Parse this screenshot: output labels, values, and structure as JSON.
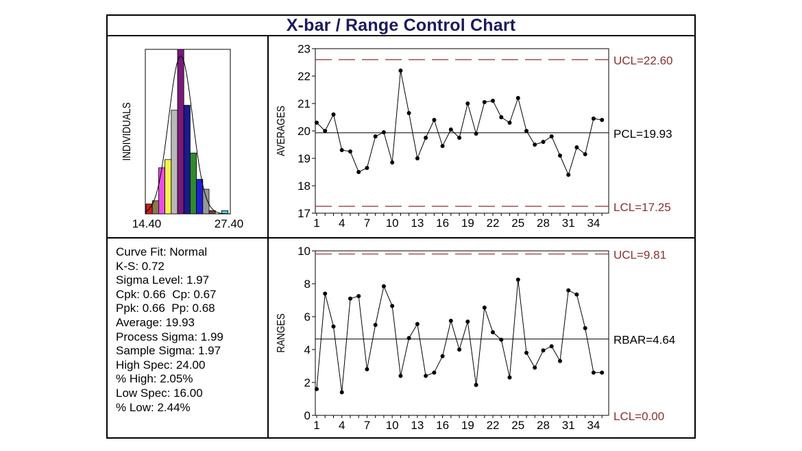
{
  "title": "X-bar / Range Control Chart",
  "colors": {
    "limit": "#8b2e2e",
    "title": "#1b1a5e",
    "center": "#000000"
  },
  "chart_data": [
    {
      "id": "histogram",
      "type": "bar",
      "title": "",
      "ylabel": "INDIVIDUALS",
      "x_tick_labels": [
        "14.40",
        "27.40"
      ],
      "xlim": [
        14.4,
        27.4
      ],
      "bins": [
        {
          "height": 0.06,
          "color": "#cc1f1f"
        },
        {
          "height": 0.08,
          "color": "#8a7c4a"
        },
        {
          "height": 0.28,
          "color": "#e84ce8"
        },
        {
          "height": 0.33,
          "color": "#f7f24a"
        },
        {
          "height": 0.63,
          "color": "#b9b9b9"
        },
        {
          "height": 1.0,
          "color": "#7a1a7a"
        },
        {
          "height": 0.66,
          "color": "#1a1a8a"
        },
        {
          "height": 0.37,
          "color": "#2e8b2e"
        },
        {
          "height": 0.21,
          "color": "#1f1fd6"
        },
        {
          "height": 0.15,
          "color": "#999999"
        },
        {
          "height": 0.02,
          "color": "#6f3f3f"
        },
        {
          "height": 0.0,
          "color": "#ffffff"
        },
        {
          "height": 0.02,
          "color": "#46c7e6"
        }
      ],
      "curve_fit": "Normal"
    },
    {
      "id": "averages",
      "type": "line",
      "ylabel": "AVERAGES",
      "ylim": [
        17,
        23
      ],
      "yticks": [
        17,
        18,
        19,
        20,
        21,
        22,
        23
      ],
      "xticks": [
        1,
        4,
        7,
        10,
        13,
        16,
        19,
        22,
        25,
        28,
        31,
        34
      ],
      "x": [
        1,
        2,
        3,
        4,
        5,
        6,
        7,
        8,
        9,
        10,
        11,
        12,
        13,
        14,
        15,
        16,
        17,
        18,
        19,
        20,
        21,
        22,
        23,
        24,
        25,
        26,
        27,
        28,
        29,
        30,
        31,
        32,
        33,
        34,
        35
      ],
      "values": [
        20.3,
        20.0,
        20.6,
        19.3,
        19.25,
        18.5,
        18.65,
        19.8,
        19.95,
        18.85,
        22.2,
        20.65,
        19.0,
        19.75,
        20.4,
        19.45,
        20.05,
        19.75,
        21.0,
        19.9,
        21.05,
        21.1,
        20.5,
        20.3,
        21.2,
        20.0,
        19.5,
        19.6,
        19.8,
        19.1,
        18.4,
        19.4,
        19.15,
        20.45,
        20.4
      ],
      "ucl": 22.6,
      "center": 19.93,
      "lcl": 17.25,
      "ucl_label": "UCL=22.60",
      "center_label": "PCL=19.93",
      "lcl_label": "LCL=17.25"
    },
    {
      "id": "ranges",
      "type": "line",
      "ylabel": "RANGES",
      "ylim": [
        0,
        10
      ],
      "yticks": [
        0,
        2,
        4,
        6,
        8,
        10
      ],
      "xticks": [
        1,
        4,
        7,
        10,
        13,
        16,
        19,
        22,
        25,
        28,
        31,
        34
      ],
      "x": [
        1,
        2,
        3,
        4,
        5,
        6,
        7,
        8,
        9,
        10,
        11,
        12,
        13,
        14,
        15,
        16,
        17,
        18,
        19,
        20,
        21,
        22,
        23,
        24,
        25,
        26,
        27,
        28,
        29,
        30,
        31,
        32,
        33,
        34,
        35
      ],
      "values": [
        1.6,
        7.4,
        5.4,
        1.4,
        7.1,
        7.25,
        2.8,
        5.5,
        7.85,
        6.65,
        2.4,
        4.7,
        5.55,
        2.4,
        2.6,
        3.6,
        5.75,
        4.0,
        5.7,
        1.85,
        6.55,
        5.05,
        4.6,
        2.3,
        8.25,
        3.8,
        2.9,
        3.95,
        4.2,
        3.3,
        7.6,
        7.35,
        5.3,
        2.6,
        2.6
      ],
      "ucl": 9.81,
      "center": 4.64,
      "lcl": 0.0,
      "ucl_label": "UCL=9.81",
      "center_label": "RBAR=4.64",
      "lcl_label": "LCL=0.00"
    }
  ],
  "stats": [
    "Curve Fit: Normal",
    "K-S: 0.72",
    "Sigma Level: 1.97",
    "Cpk: 0.66  Cp: 0.67",
    "Ppk: 0.66  Pp: 0.68",
    "Average: 19.93",
    "Process Sigma: 1.99",
    "Sample Sigma: 1.97",
    "High Spec: 24.00",
    "% High: 2.05%",
    "Low Spec: 16.00",
    "% Low: 2.44%"
  ]
}
